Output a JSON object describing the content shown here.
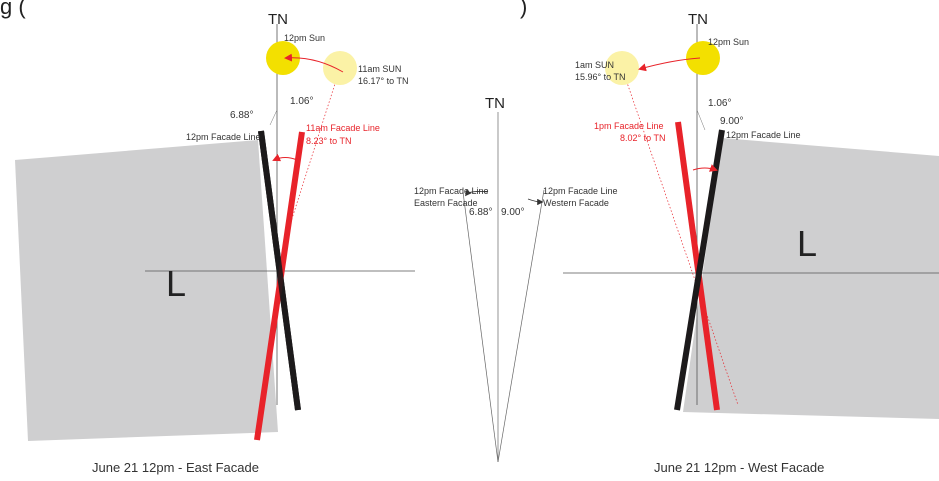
{
  "header_fragment": "g (",
  "header_fragment_right": ")",
  "left": {
    "tn": "TN",
    "sun_main": "12pm Sun",
    "sun_prev_l1": "11am SUN",
    "sun_prev_l2": "16.17° to TN",
    "angle_a": "1.06°",
    "angle_b": "6.88°",
    "black_line": "12pm Facade Line",
    "red_line_l1": "11am Facade Line",
    "red_line_l2": "8.23° to TN",
    "building": "L",
    "caption": "June 21 12pm - East Facade"
  },
  "center": {
    "tn": "TN",
    "left_l1": "12pm Facade Line",
    "left_l2": "Eastern Facade",
    "right_l1": "12pm Facade Line",
    "right_l2": "Western Facade",
    "angle_left": "6.88°",
    "angle_right": "9.00°"
  },
  "right": {
    "tn": "TN",
    "sun_main": "12pm Sun",
    "sun_next_l1": "1am SUN",
    "sun_next_l2": "15.96° to TN",
    "angle_a": "1.06°",
    "angle_b": "9.00°",
    "black_line": "12pm Facade Line",
    "red_line_l1": "1pm Facade Line",
    "red_line_l2": "8.02° to TN",
    "building": "L",
    "caption": "June 21 12pm - West Facade"
  },
  "colors": {
    "building": "#cfcfd0",
    "sun": "#f3e000",
    "sun_faint": "#fbf2a6",
    "facade_black": "#1c1a1b",
    "facade_red": "#e8232a",
    "guide": "#555555"
  }
}
